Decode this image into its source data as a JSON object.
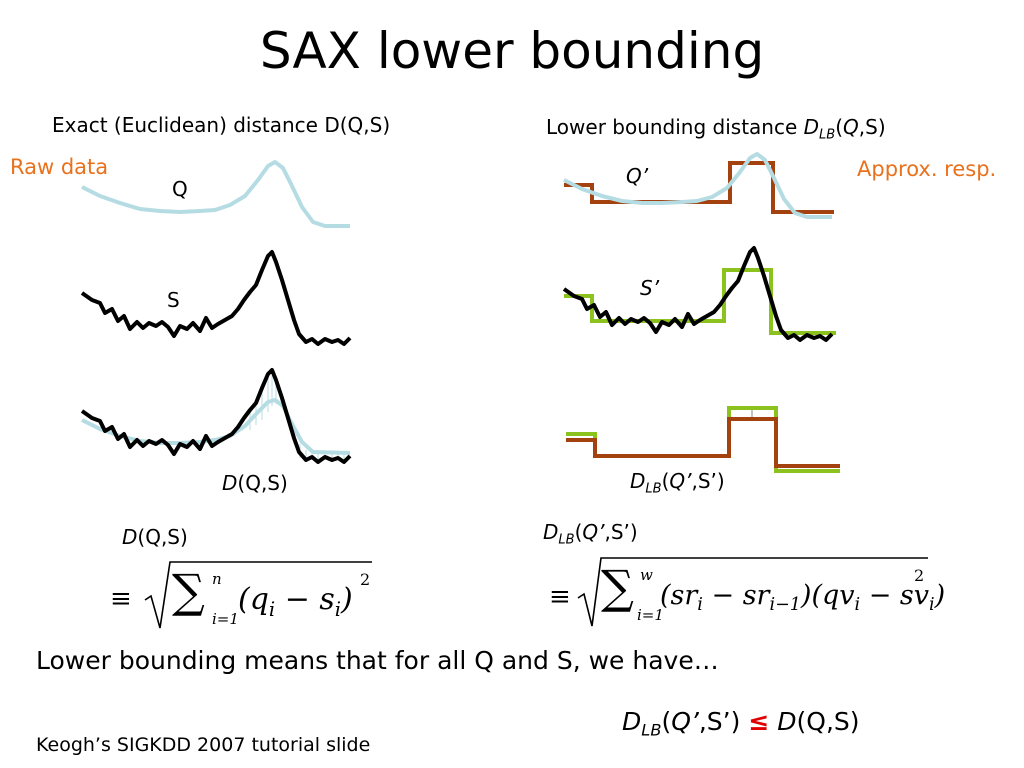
{
  "title": "SAX lower bounding",
  "left_header": "Exact (Euclidean) distance D(Q,S)",
  "right_header": {
    "pre": "Lower bounding distance ",
    "d": "D",
    "sub": "LB",
    "args_open": "(",
    "q": "Q",
    "args_close": ",S)"
  },
  "raw_data": "Raw data",
  "approx": "Approx. resp.",
  "labels": {
    "q": "Q",
    "s": "S",
    "q_prime": "Q’",
    "s_prime": "S’",
    "d": "D",
    "d_args": "(Q,S)",
    "dlb": "D",
    "dlb_sub": "LB",
    "dlb_args_open": "(",
    "dlb_q": "Q’",
    "dlb_args_close": ",S’)"
  },
  "formula_left": {
    "d": "D",
    "args": "(Q,S)",
    "equiv": "≡",
    "sum_upper": "n",
    "sum_lower": "i=1",
    "body": "(q",
    "body_sub1": "i",
    "body_mid": " − s",
    "body_sub2": "i",
    "body_end": ")",
    "power": "2"
  },
  "formula_right": {
    "d": "D",
    "sub": "LB",
    "args_open": "(",
    "q": "Q’",
    "args_close": ",S’)",
    "equiv": "≡",
    "sum_upper": "w",
    "sum_lower": "i=1",
    "t1": "(sr",
    "t1s": "i",
    "t2": " − sr",
    "t2s": "i−1",
    "t3": ")(qv",
    "t3s": "i",
    "t4": " − sv",
    "t4s": "i",
    "t5": ")",
    "power": "2"
  },
  "statement": "Lower bounding means that for all Q and S, we have…",
  "inequality": {
    "d1": "D",
    "sub": "LB",
    "open": "(",
    "q": "Q’",
    "close": ",S’)",
    "le": "≤",
    "d2": "D",
    "args": "(Q,S)"
  },
  "credit": "Keogh’s SIGKDD 2007 tutorial slide",
  "colors": {
    "q_series": "#b5dce3",
    "s_series": "#000000",
    "q_approx": "#a3420e",
    "s_approx": "#8cc21e",
    "accent": "#e9711c",
    "le": "#e00000"
  }
}
